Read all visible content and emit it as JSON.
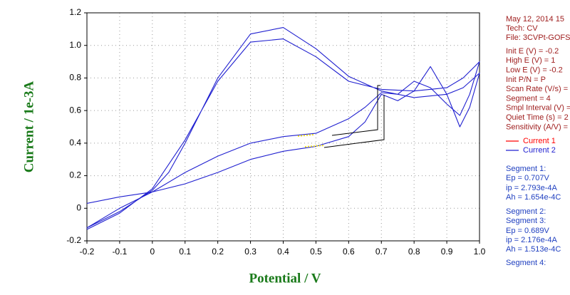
{
  "chart_data": {
    "type": "line",
    "x_label": "Potential / V",
    "y_label": "Current / 1e-3A",
    "xlim": [
      -0.2,
      1
    ],
    "ylim": [
      -0.2,
      1.2
    ],
    "xticks": [
      -0.2,
      -0.1,
      0,
      0.1,
      0.2,
      0.3,
      0.4,
      0.5,
      0.6,
      0.7,
      0.8,
      0.9,
      {
        "value": 1,
        "label": "1.0"
      }
    ],
    "yticks": [
      -0.2,
      0,
      0.2,
      0.4,
      0.6,
      0.8,
      {
        "value": 1,
        "label": "1.0"
      },
      1.2
    ],
    "grid": true,
    "series": [
      {
        "name": "Current 1",
        "color": "#ff0000",
        "x": [],
        "values": []
      },
      {
        "name": "Current 2",
        "color": "#2020d0",
        "x": [
          -0.2,
          -0.1,
          0,
          0.1,
          0.2,
          0.3,
          0.4,
          0.5,
          0.6,
          0.65,
          0.7,
          0.75,
          0.8,
          0.85,
          0.9,
          0.94,
          0.97,
          1,
          0.95,
          0.9,
          0.8,
          0.7,
          0.6,
          0.5,
          0.4,
          0.3,
          0.2,
          0.1,
          0.05,
          0,
          -0.1,
          -0.2,
          -0.1,
          0,
          0.1,
          0.2,
          0.3,
          0.4,
          0.5,
          0.6,
          0.65,
          0.7,
          0.75,
          0.8,
          0.85,
          0.9,
          0.94,
          0.97,
          1,
          0.95,
          0.9,
          0.8,
          0.7,
          0.6,
          0.5,
          0.4,
          0.3,
          0.2,
          0.1,
          0,
          -0.1,
          -0.2
        ],
        "values": [
          0.03,
          0.07,
          0.1,
          0.15,
          0.22,
          0.3,
          0.35,
          0.38,
          0.44,
          0.53,
          0.7,
          0.66,
          0.72,
          0.87,
          0.7,
          0.5,
          0.62,
          0.83,
          0.74,
          0.7,
          0.68,
          0.72,
          0.81,
          0.98,
          1.11,
          1.07,
          0.8,
          0.4,
          0.22,
          0.11,
          -0.02,
          -0.12,
          0,
          0.1,
          0.22,
          0.32,
          0.4,
          0.44,
          0.46,
          0.55,
          0.62,
          0.71,
          0.7,
          0.78,
          0.74,
          0.64,
          0.57,
          0.7,
          0.9,
          0.8,
          0.74,
          0.72,
          0.73,
          0.78,
          0.93,
          1.04,
          1.02,
          0.78,
          0.42,
          0.12,
          -0.03,
          -0.13
        ]
      }
    ],
    "info": [
      "May 12, 2014   15",
      "Tech: CV",
      "File: 3CVPt-GOFS",
      "Init E (V) = -0.2",
      "High E (V) = 1",
      "Low E (V) = -0.2",
      "Init P/N = P",
      "Scan Rate (V/s) =",
      "Segment = 4",
      "Smpl Interval (V) =",
      "Quiet Time (s) = 2",
      "Sensitivity (A/V) ="
    ],
    "peaks": [
      "Segment 1:",
      "Ep = 0.707V",
      "ip = 2.793e-4A",
      "Ah = 1.654e-4C",
      "Segment 2:",
      "Segment 3:",
      "Ep = 0.689V",
      "ip = 2.176e-4A",
      "Ah = 1.513e-4C",
      "Segment 4:"
    ]
  }
}
